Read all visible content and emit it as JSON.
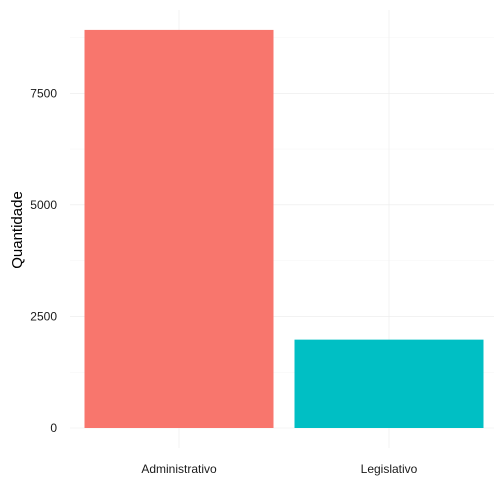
{
  "chart_data": {
    "type": "bar",
    "categories": [
      "Administrativo",
      "Legislativo"
    ],
    "values": [
      8920,
      1980
    ],
    "colors": [
      "#F8766D",
      "#00BFC4"
    ],
    "title": "",
    "xlabel": "",
    "ylabel": "Quantidade",
    "ylim": [
      0,
      9366
    ],
    "yticks": [
      0,
      2500,
      5000,
      7500
    ],
    "grid": true,
    "legend": "none"
  }
}
